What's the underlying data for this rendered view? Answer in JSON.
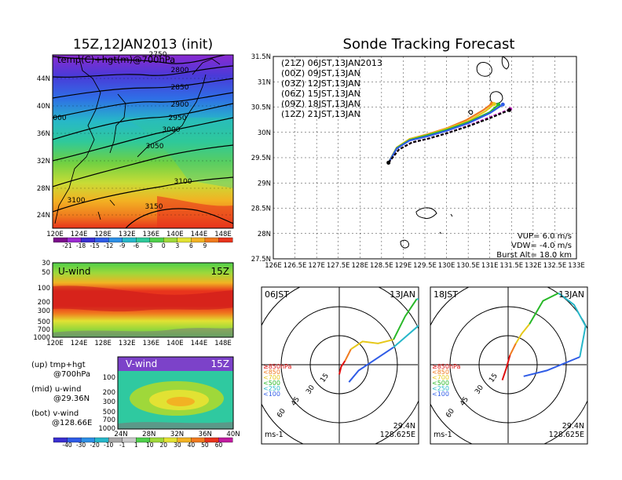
{
  "panels": {
    "map": {
      "title": "15Z,12JAN2013 (init)",
      "label": "temp(C)+hgt(m)@700hPa",
      "lat_labels": [
        "44N",
        "40N",
        "36N",
        "32N",
        "28N",
        "24N"
      ],
      "lon_labels": [
        "120E",
        "124E",
        "128E",
        "132E",
        "136E",
        "140E",
        "144E",
        "148E"
      ],
      "contour_labels": [
        "2750",
        "2800",
        "2850",
        "2900",
        "2950",
        "3000",
        "3050",
        "3100",
        "3100",
        "3150",
        "000"
      ],
      "colorbar": {
        "ticks": [
          "-21",
          "-18",
          "-15",
          "-12",
          "-9",
          "-6",
          "-3",
          "0",
          "3",
          "6",
          "9"
        ],
        "colors": [
          "#7a0b8a",
          "#9a2ad0",
          "#3a2fd0",
          "#2f5ce6",
          "#2d8fe6",
          "#27b7c9",
          "#2fc99a",
          "#4fcf4b",
          "#9fd83a",
          "#e2e233",
          "#f2b223",
          "#f07a1e",
          "#e8341c"
        ]
      }
    },
    "uwind": {
      "label": "U-wind",
      "time": "15Z",
      "y_ticks": [
        "30",
        "50",
        "100",
        "200",
        "300",
        "500",
        "700",
        "1000"
      ],
      "x_ticks": [
        "120E",
        "124E",
        "128E",
        "132E",
        "136E",
        "140E",
        "144E",
        "148E"
      ]
    },
    "vwind": {
      "label": "V-wind",
      "time": "15Z",
      "y_ticks": [
        "100",
        "200",
        "300",
        "500",
        "700",
        "1000"
      ],
      "x_ticks": [
        "24N",
        "28N",
        "32N",
        "36N",
        "40N"
      ],
      "colorbar": {
        "ticks": [
          "-40",
          "-30",
          "-20",
          "-10",
          "-1",
          "1",
          "10",
          "20",
          "30",
          "40",
          "50",
          "60"
        ],
        "colors": [
          "#3a2fd0",
          "#2f5ce6",
          "#2d8fe6",
          "#27b7c9",
          "#a8a8a8",
          "#c8c8c8",
          "#4fcf4b",
          "#9fd83a",
          "#e2e233",
          "#f2b223",
          "#f07a1e",
          "#e8341c",
          "#c01ca0"
        ]
      }
    },
    "notes": [
      {
        "line1": "(up) tmp+hgt",
        "line2": "@700hPa"
      },
      {
        "line1": "(mid) u-wind",
        "line2": "@29.36N"
      },
      {
        "line1": "(bot) v-wind",
        "line2": "@128.66E"
      }
    ],
    "tracking": {
      "title": "Sonde Tracking Forecast",
      "legend": [
        {
          "label": "(21Z) 06JST,13JAN2013",
          "color": "#000000"
        },
        {
          "label": "(00Z) 09JST,13JAN",
          "color": "#c020c0"
        },
        {
          "label": "(03Z) 12JST,13JAN",
          "color": "#2f5ce6"
        },
        {
          "label": "(06Z) 15JST,13JAN",
          "color": "#28b828"
        },
        {
          "label": "(09Z) 18JST,13JAN",
          "color": "#e6c81a"
        },
        {
          "label": "(12Z) 21JST,13JAN",
          "color": "#f07a1e"
        }
      ],
      "lat_labels": [
        "31.5N",
        "31N",
        "30.5N",
        "30N",
        "29.5N",
        "29N",
        "28.5N",
        "28N",
        "27.5N"
      ],
      "lon_labels": [
        "126E",
        "126.5E",
        "127E",
        "127.5E",
        "128E",
        "128.5E",
        "129E",
        "129.5E",
        "130E",
        "130.5E",
        "131E",
        "131.5E",
        "132E",
        "132.5E",
        "133E"
      ],
      "params": [
        "VUP= 6.0 m/s",
        "VDW= -4.0 m/s",
        "Burst Alt= 18.0 km"
      ]
    },
    "hodo_left": {
      "time": "06JST",
      "date": "13JAN",
      "lat": "29.4N",
      "lon": "128.625E",
      "units": "ms-1",
      "ring_labels": [
        "15",
        "30",
        "45",
        "60"
      ],
      "level_labels": [
        "≥850hPa",
        "<850",
        "<700",
        "<500",
        "<250",
        "<100"
      ]
    },
    "hodo_right": {
      "time": "18JST",
      "date": "13JAN",
      "lat": "29.4N",
      "lon": "128.625E",
      "units": "ms-1",
      "ring_labels": [
        "15",
        "30",
        "45",
        "60"
      ],
      "level_labels": [
        "≥850hPa",
        "<850",
        "<700",
        "<500",
        "<250",
        "<100"
      ]
    }
  },
  "chart_data": [
    {
      "type": "heatmap",
      "title": "15Z,12JAN2013 (init)",
      "subtitle": "temp(C)+hgt(m)@700hPa",
      "xlim": [
        120,
        149
      ],
      "ylim": [
        22,
        47
      ],
      "contours": [
        {
          "value": 2750,
          "label_lon": 140,
          "label_lat": 46.6
        },
        {
          "value": 2800,
          "label_lon": 141.5,
          "label_lat": 44.8
        },
        {
          "value": 2850,
          "label_lon": 141.5,
          "label_lat": 42.8
        },
        {
          "value": 2900,
          "label_lon": 141.5,
          "label_lat": 40.4
        },
        {
          "value": 2950,
          "label_lon": 141.5,
          "label_lat": 38.3
        },
        {
          "value": 3000,
          "label_lon": 138.5,
          "label_lat": 36.2
        },
        {
          "value": 3050,
          "label_lon": 135,
          "label_lat": 33.6
        },
        {
          "value": 3100,
          "label_lon": 123,
          "label_lat": 25.6
        },
        {
          "value": 3100,
          "label_lon": 140,
          "label_lat": 28.6
        },
        {
          "value": 3150,
          "label_lon": 136,
          "label_lat": 25.3
        }
      ]
    },
    {
      "type": "heatmap",
      "title": "U-wind",
      "x": [
        "120E",
        "124E",
        "128E",
        "132E",
        "136E",
        "140E",
        "144E",
        "148E"
      ],
      "y_levels_hPa": [
        30,
        50,
        100,
        200,
        300,
        500,
        700,
        1000
      ],
      "note": "@29.36N"
    },
    {
      "type": "heatmap",
      "title": "V-wind",
      "x": [
        "24N",
        "28N",
        "32N",
        "36N",
        "40N"
      ],
      "y_levels_hPa": [
        100,
        200,
        300,
        500,
        700,
        1000
      ],
      "note": "@128.66E"
    },
    {
      "type": "line",
      "title": "Sonde Tracking Forecast",
      "xlabel": "",
      "ylabel": "",
      "xlim": [
        126,
        133
      ],
      "ylim": [
        27.5,
        31.5
      ],
      "series": [
        {
          "name": "(21Z) 06JST,13JAN2013",
          "color": "#000000",
          "x": [
            128.66,
            128.9,
            129.2,
            129.6,
            130.0,
            130.5,
            131.0,
            131.45
          ],
          "y": [
            29.4,
            29.66,
            29.8,
            29.88,
            29.98,
            30.12,
            30.28,
            30.44
          ]
        },
        {
          "name": "(00Z) 09JST,13JAN",
          "color": "#c020c0",
          "x": [
            128.66,
            128.9,
            129.2,
            129.6,
            130.0,
            130.5,
            131.0,
            131.47
          ],
          "y": [
            29.4,
            29.66,
            29.8,
            29.88,
            29.98,
            30.13,
            30.3,
            30.46
          ]
        },
        {
          "name": "(03Z) 12JST,13JAN",
          "color": "#2f5ce6",
          "x": [
            128.66,
            128.85,
            129.15,
            129.55,
            130.0,
            130.5,
            131.0,
            131.3
          ],
          "y": [
            29.4,
            29.68,
            29.84,
            29.92,
            30.03,
            30.18,
            30.38,
            30.55
          ]
        },
        {
          "name": "(06Z) 15JST,13JAN",
          "color": "#28b828",
          "x": [
            128.66,
            128.85,
            129.15,
            129.55,
            130.0,
            130.5,
            131.0,
            131.2
          ],
          "y": [
            29.4,
            29.69,
            29.85,
            29.94,
            30.05,
            30.2,
            30.4,
            30.55
          ]
        },
        {
          "name": "(09Z) 18JST,13JAN",
          "color": "#e6c81a",
          "x": [
            128.66,
            128.85,
            129.15,
            129.55,
            130.0,
            130.5,
            130.9,
            131.1
          ],
          "y": [
            29.4,
            29.7,
            29.87,
            29.95,
            30.07,
            30.22,
            30.42,
            30.56
          ]
        },
        {
          "name": "(12Z) 21JST,13JAN",
          "color": "#f07a1e",
          "x": [
            128.66,
            128.85,
            129.15,
            129.55,
            130.0,
            130.45,
            130.85,
            131.05
          ],
          "y": [
            29.4,
            29.7,
            29.87,
            29.96,
            30.08,
            30.24,
            30.44,
            30.57
          ]
        }
      ],
      "params": {
        "VUP_m_s": 6.0,
        "VDW_m_s": -4.0,
        "burst_alt_km": 18.0
      }
    },
    {
      "type": "line",
      "title": "06JST 13JAN",
      "units": "ms-1",
      "ring_labels": [
        15,
        30,
        45,
        60
      ],
      "series": [
        {
          "name": "≥850hPa",
          "color": "#e01010",
          "u": [
            0,
            1,
            3
          ],
          "v": [
            -5,
            -1,
            2
          ]
        },
        {
          "name": "<850",
          "color": "#f07a1e",
          "u": [
            3,
            6
          ],
          "v": [
            2,
            8
          ]
        },
        {
          "name": "<700",
          "color": "#e6c81a",
          "u": [
            6,
            12,
            20,
            28
          ],
          "v": [
            8,
            12,
            11,
            13
          ]
        },
        {
          "name": "<500",
          "color": "#28b828",
          "u": [
            28,
            34,
            40
          ],
          "v": [
            13,
            25,
            34
          ]
        },
        {
          "name": "<250",
          "color": "#27b7c9",
          "u": [
            40,
            44,
            43,
            28
          ],
          "v": [
            34,
            33,
            22,
            9
          ]
        },
        {
          "name": "<100",
          "color": "#2f5ce6",
          "u": [
            28,
            10,
            5
          ],
          "v": [
            9,
            -3,
            -9
          ]
        }
      ]
    },
    {
      "type": "line",
      "title": "18JST 13JAN",
      "units": "ms-1",
      "ring_labels": [
        15,
        30,
        45,
        60
      ],
      "series": [
        {
          "name": "≥850hPa",
          "color": "#e01010",
          "u": [
            -3,
            -1,
            1
          ],
          "v": [
            -8,
            -2,
            5
          ]
        },
        {
          "name": "<850",
          "color": "#f07a1e",
          "u": [
            1,
            4
          ],
          "v": [
            5,
            11
          ]
        },
        {
          "name": "<700",
          "color": "#e6c81a",
          "u": [
            4,
            7,
            11
          ],
          "v": [
            11,
            16,
            21
          ]
        },
        {
          "name": "<500",
          "color": "#28b828",
          "u": [
            11,
            18,
            26
          ],
          "v": [
            21,
            33,
            37
          ]
        },
        {
          "name": "<250",
          "color": "#27b7c9",
          "u": [
            26,
            34,
            40,
            37
          ],
          "v": [
            37,
            31,
            20,
            4
          ]
        },
        {
          "name": "<100",
          "color": "#2f5ce6",
          "u": [
            37,
            20,
            8
          ],
          "v": [
            4,
            -3,
            -6
          ]
        }
      ]
    }
  ]
}
